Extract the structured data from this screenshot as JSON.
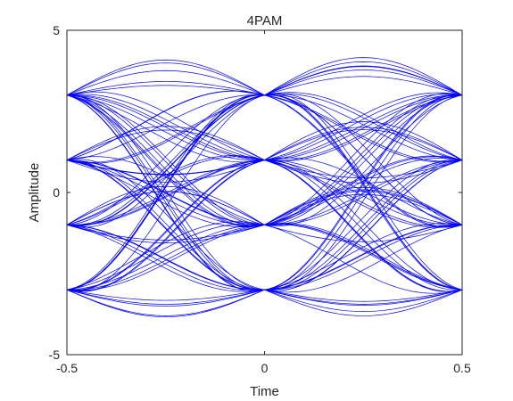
{
  "chart_data": {
    "type": "line",
    "title": "4PAM",
    "xlabel": "Time",
    "ylabel": "Amplitude",
    "xlim": [
      -0.5,
      0.5
    ],
    "ylim": [
      -5,
      5
    ],
    "x_ticks": [
      -0.5,
      0,
      0.5
    ],
    "x_tick_labels": [
      "-0.5",
      "0",
      "0.5"
    ],
    "y_ticks": [
      -5,
      0,
      5
    ],
    "y_tick_labels": [
      "-5",
      "0",
      "5"
    ],
    "grid": false,
    "box": true,
    "trace_color": "#0000ff",
    "symbol_levels": [
      -3,
      -1,
      1,
      3
    ],
    "symbol_instants": [
      -0.5,
      0,
      0.5
    ],
    "eye_peaks": {
      "max": 4.1,
      "min": -4.1
    },
    "traces": [
      [
        3,
        3,
        3
      ],
      [
        3,
        1,
        -1
      ],
      [
        3,
        -1,
        -3
      ],
      [
        3,
        -3,
        1
      ],
      [
        3,
        1,
        3
      ],
      [
        3,
        -1,
        1
      ],
      [
        1,
        3,
        1
      ],
      [
        1,
        1,
        -3
      ],
      [
        1,
        -1,
        3
      ],
      [
        1,
        -3,
        -1
      ],
      [
        1,
        3,
        -3
      ],
      [
        1,
        1,
        1
      ],
      [
        -1,
        3,
        -1
      ],
      [
        -1,
        1,
        3
      ],
      [
        -1,
        -1,
        -1
      ],
      [
        -1,
        -3,
        3
      ],
      [
        -1,
        1,
        -3
      ],
      [
        -1,
        -3,
        -3
      ],
      [
        -3,
        3,
        3
      ],
      [
        -3,
        1,
        1
      ],
      [
        -3,
        -1,
        -3
      ],
      [
        -3,
        -3,
        -1
      ],
      [
        -3,
        3,
        -1
      ],
      [
        -3,
        -1,
        3
      ],
      [
        3,
        3,
        -3
      ],
      [
        3,
        -3,
        -3
      ],
      [
        1,
        -1,
        1
      ],
      [
        -1,
        3,
        3
      ],
      [
        -3,
        -3,
        1
      ],
      [
        1,
        1,
        3
      ],
      [
        -1,
        -1,
        -3
      ],
      [
        3,
        1,
        1
      ],
      [
        -3,
        1,
        -1
      ],
      [
        1,
        -3,
        3
      ],
      [
        -1,
        3,
        1
      ],
      [
        3,
        -1,
        -1
      ],
      [
        1,
        3,
        3
      ],
      [
        -3,
        -1,
        -1
      ],
      [
        -1,
        1,
        -1
      ],
      [
        3,
        3,
        1
      ],
      [
        -3,
        -3,
        -3
      ],
      [
        1,
        -1,
        -3
      ],
      [
        -1,
        -3,
        1
      ],
      [
        3,
        -3,
        3
      ],
      [
        1,
        1,
        -1
      ],
      [
        -3,
        3,
        1
      ],
      [
        -1,
        -1,
        3
      ],
      [
        3,
        1,
        -3
      ],
      [
        1,
        3,
        -1
      ],
      [
        -3,
        1,
        3
      ],
      [
        -1,
        3,
        -3
      ],
      [
        3,
        -1,
        3
      ],
      [
        1,
        -3,
        -3
      ],
      [
        -3,
        -1,
        1
      ],
      [
        -1,
        1,
        1
      ],
      [
        3,
        3,
        -1
      ],
      [
        1,
        -1,
        -1
      ],
      [
        -3,
        -3,
        3
      ],
      [
        -1,
        -3,
        -1
      ],
      [
        3,
        1,
        -1
      ],
      [
        1,
        1,
        3
      ],
      [
        -3,
        3,
        -3
      ],
      [
        -1,
        -1,
        1
      ],
      [
        3,
        -3,
        -1
      ],
      [
        1,
        3,
        1
      ],
      [
        -3,
        1,
        -3
      ],
      [
        -1,
        3,
        -1
      ],
      [
        3,
        -1,
        1
      ],
      [
        1,
        -3,
        1
      ],
      [
        -3,
        -1,
        -3
      ],
      [
        -1,
        1,
        3
      ],
      [
        3,
        3,
        3
      ],
      [
        1,
        -1,
        3
      ],
      [
        -3,
        -3,
        -1
      ],
      [
        -1,
        -3,
        -3
      ],
      [
        3,
        1,
        1
      ],
      [
        1,
        1,
        -3
      ],
      [
        -3,
        3,
        3
      ],
      [
        -1,
        -1,
        -1
      ],
      [
        3,
        -3,
        1
      ]
    ]
  }
}
